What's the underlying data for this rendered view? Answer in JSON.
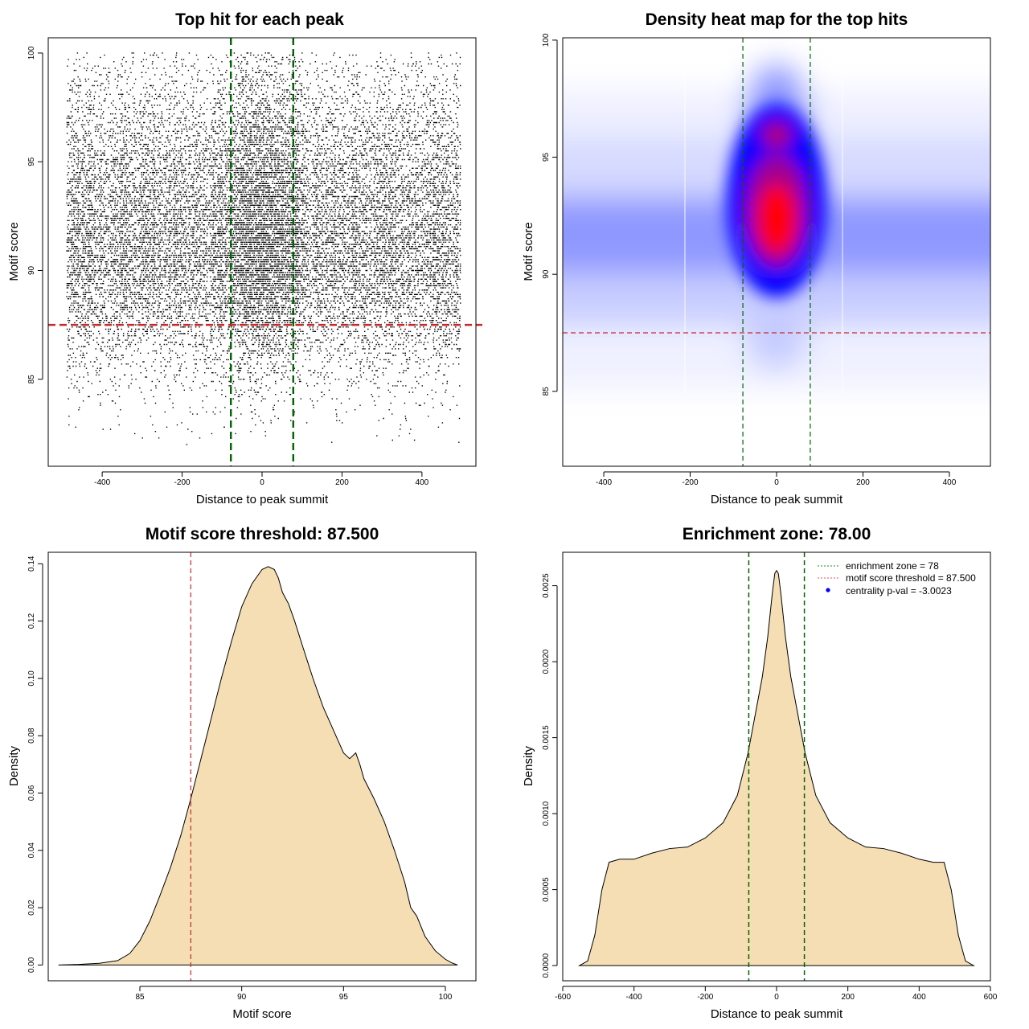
{
  "chart_data": [
    {
      "id": "scatter",
      "type": "scatter",
      "title": "Top hit for each peak",
      "xlabel": "Distance to peak summit",
      "ylabel": "Motif score",
      "xlim": [
        -535,
        535
      ],
      "ylim": [
        81.0,
        100.7
      ],
      "xticks": [
        "-400",
        "-200",
        "0",
        "200",
        "400"
      ],
      "xtick_values": [
        -400,
        -200,
        0,
        200,
        400
      ],
      "yticks": [
        "85",
        "90",
        "95",
        "100"
      ],
      "ytick_values": [
        85,
        90,
        95,
        100
      ],
      "x_range_of_points": [
        -490,
        495
      ],
      "point_density_by_score": [
        {
          "score": 82.0,
          "relative_density": 0.005
        },
        {
          "score": 84.0,
          "relative_density": 0.05
        },
        {
          "score": 86.0,
          "relative_density": 0.2
        },
        {
          "score": 88.0,
          "relative_density": 0.55
        },
        {
          "score": 90.0,
          "relative_density": 1.0
        },
        {
          "score": 92.0,
          "relative_density": 0.95
        },
        {
          "score": 94.0,
          "relative_density": 0.75
        },
        {
          "score": 96.0,
          "relative_density": 0.5
        },
        {
          "score": 98.0,
          "relative_density": 0.25
        },
        {
          "score": 100.0,
          "relative_density": 0.1
        }
      ],
      "vlines": [
        {
          "x": -78,
          "color": "#006400"
        },
        {
          "x": 78,
          "color": "#006400"
        }
      ],
      "hlines": [
        {
          "y": 87.5,
          "color": "#c82828"
        }
      ]
    },
    {
      "id": "heatmap",
      "type": "heatmap",
      "title": "Density heat map for the top hits",
      "xlabel": "Distance to peak summit",
      "ylabel": "Motif score",
      "xlim": [
        -495,
        495
      ],
      "ylim": [
        81.8,
        100.1
      ],
      "xticks": [
        "-400",
        "-200",
        "0",
        "200",
        "400"
      ],
      "xtick_values": [
        -400,
        -200,
        0,
        200,
        400
      ],
      "yticks": [
        "85",
        "90",
        "95",
        "100"
      ],
      "ytick_values": [
        85,
        90,
        95,
        100
      ],
      "density_peak": {
        "x": 0,
        "y": 92.2
      },
      "vlines": [
        {
          "x": -78,
          "color": "#006400"
        },
        {
          "x": 78,
          "color": "#006400"
        }
      ],
      "hlines": [
        {
          "y": 87.5,
          "color": "#c82828"
        }
      ]
    },
    {
      "id": "score_density",
      "type": "area",
      "title": "Motif score threshold: 87.500",
      "xlabel": "Motif score",
      "ylabel": "Density",
      "xlim": [
        80.5,
        101.5
      ],
      "ylim": [
        -0.0055,
        0.144
      ],
      "xticks": [
        "85",
        "90",
        "95",
        "100"
      ],
      "xtick_values": [
        85,
        90,
        95,
        100
      ],
      "yticks": [
        "0.00",
        "0.02",
        "0.04",
        "0.06",
        "0.08",
        "0.10",
        "0.12",
        "0.14"
      ],
      "ytick_values": [
        0,
        0.02,
        0.04,
        0.06,
        0.08,
        0.1,
        0.12,
        0.14
      ],
      "fill": "#f5deb3",
      "x": [
        81.0,
        82.0,
        83.0,
        83.9,
        84.5,
        85.0,
        85.5,
        86.0,
        86.5,
        87.0,
        87.5,
        88.0,
        88.5,
        89.0,
        89.5,
        90.0,
        90.5,
        91.0,
        91.3,
        91.6,
        91.8,
        92.0,
        92.3,
        92.6,
        93.0,
        93.5,
        94.0,
        94.5,
        95.0,
        95.3,
        95.6,
        95.8,
        96.0,
        96.5,
        97.0,
        97.5,
        98.0,
        98.3,
        98.6,
        99.0,
        99.5,
        100.0,
        100.3,
        100.6
      ],
      "y": [
        0.0,
        0.0002,
        0.0006,
        0.0015,
        0.004,
        0.0085,
        0.0155,
        0.0245,
        0.034,
        0.045,
        0.058,
        0.072,
        0.086,
        0.1,
        0.113,
        0.125,
        0.133,
        0.138,
        0.139,
        0.138,
        0.135,
        0.13,
        0.126,
        0.12,
        0.111,
        0.1,
        0.09,
        0.082,
        0.074,
        0.072,
        0.074,
        0.07,
        0.065,
        0.058,
        0.05,
        0.04,
        0.029,
        0.02,
        0.017,
        0.01,
        0.005,
        0.002,
        0.0008,
        0.0
      ],
      "vlines": [
        {
          "x": 87.5,
          "color": "#c82828"
        }
      ]
    },
    {
      "id": "distance_density",
      "type": "area",
      "title": "Enrichment zone: 78.00",
      "xlabel": "Distance to peak summit",
      "ylabel": "Density",
      "xlim": [
        -600,
        600
      ],
      "ylim": [
        -0.0001,
        0.00272
      ],
      "xticks": [
        "-600",
        "-400",
        "-200",
        "0",
        "200",
        "400",
        "600"
      ],
      "xtick_values": [
        -600,
        -400,
        -200,
        0,
        200,
        400,
        600
      ],
      "yticks": [
        "0.0000",
        "0.0005",
        "0.0010",
        "0.0015",
        "0.0020",
        "0.0025"
      ],
      "ytick_values": [
        0,
        0.0005,
        0.001,
        0.0015,
        0.002,
        0.0025
      ],
      "fill": "#f5deb3",
      "x": [
        -553,
        -530,
        -510,
        -490,
        -470,
        -440,
        -400,
        -350,
        -300,
        -250,
        -200,
        -150,
        -110,
        -80,
        -60,
        -40,
        -25,
        -12,
        -5,
        0,
        5,
        12,
        25,
        40,
        60,
        80,
        110,
        150,
        200,
        250,
        300,
        350,
        400,
        440,
        470,
        490,
        510,
        530,
        553
      ],
      "y": [
        0.0,
        3e-05,
        0.0002,
        0.0005,
        0.00068,
        0.0007,
        0.0007,
        0.00074,
        0.00077,
        0.00078,
        0.00084,
        0.00094,
        0.00112,
        0.0014,
        0.00165,
        0.0019,
        0.00216,
        0.00245,
        0.00258,
        0.0026,
        0.00258,
        0.00245,
        0.00216,
        0.0019,
        0.00165,
        0.0014,
        0.00112,
        0.00094,
        0.00084,
        0.00078,
        0.00077,
        0.00074,
        0.0007,
        0.00068,
        0.00068,
        0.0005,
        0.0002,
        3e-05,
        0.0
      ],
      "vlines": [
        {
          "x": -78,
          "color": "#006400"
        },
        {
          "x": 78,
          "color": "#006400"
        }
      ],
      "legend": [
        {
          "label": "enrichment zone = 78",
          "kind": "dotted-line",
          "color": "#228b22"
        },
        {
          "label": "motif score threshold = 87.500",
          "kind": "dotted-line",
          "color": "#e05050"
        },
        {
          "label": "centrality p-val = -3.0023",
          "kind": "dot",
          "color": "#0000ff"
        }
      ]
    }
  ]
}
